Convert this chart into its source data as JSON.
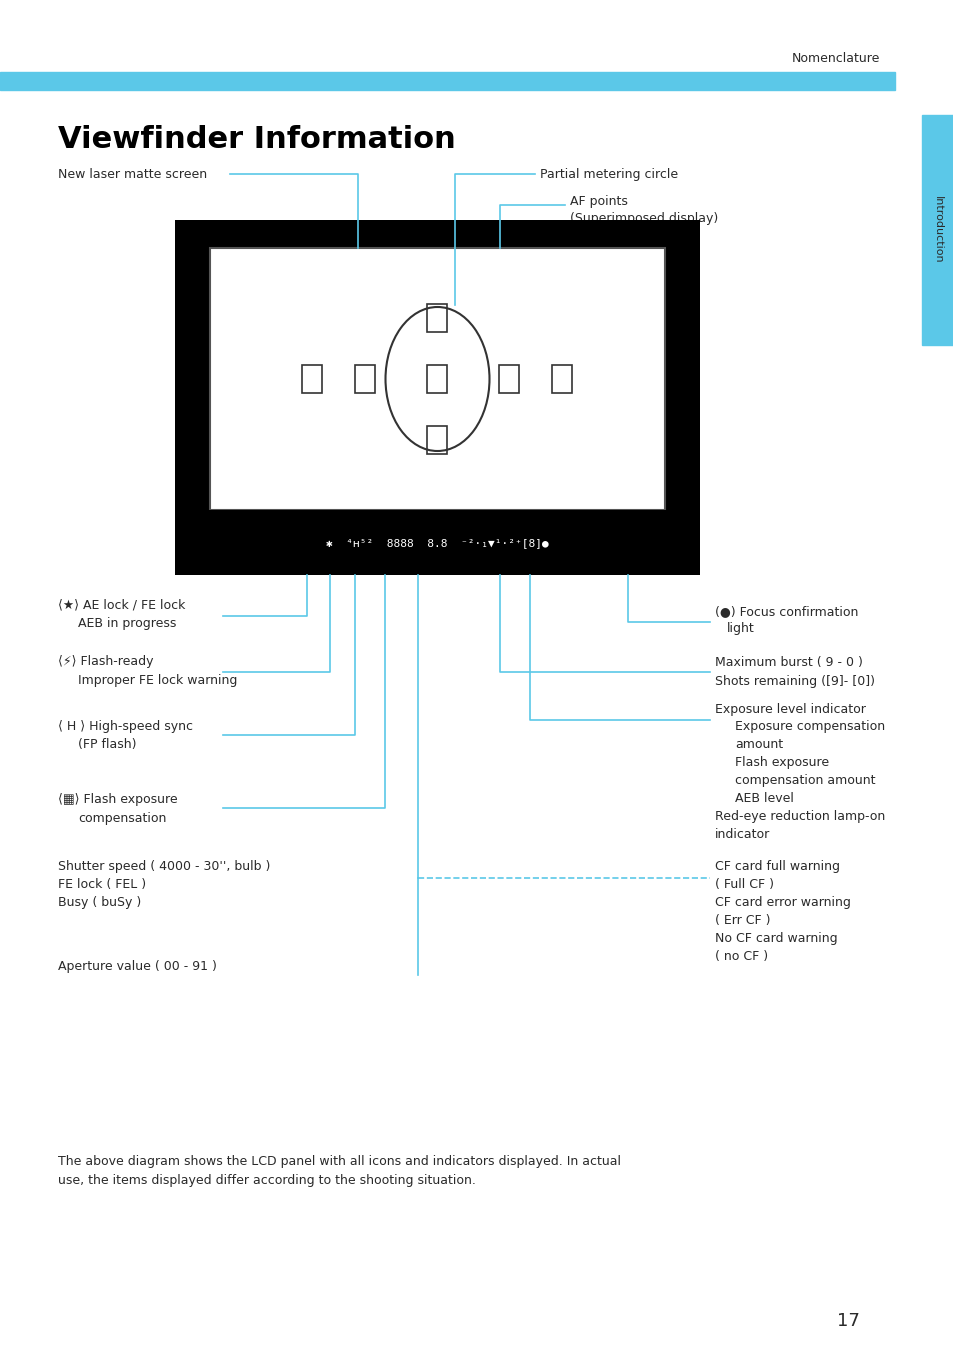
{
  "title": "Viewfinder Information",
  "header_text": "Nomenclature",
  "sidebar_text": "Introduction",
  "bg_color": "#ffffff",
  "cyan_color": "#5BC8E8",
  "black": "#000000",
  "text_color": "#2a2a2a",
  "page_number": "17",
  "footer_text": "The above diagram shows the LCD panel with all icons and indicators displayed. In actual\nuse, the items displayed differ according to the shooting situation."
}
